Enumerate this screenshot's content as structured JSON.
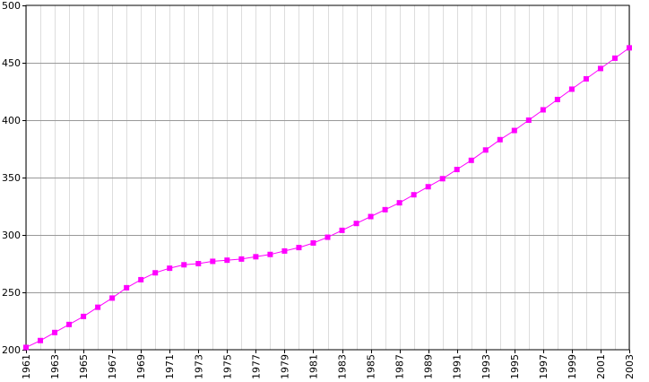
{
  "chart_data": {
    "type": "line",
    "title": "",
    "xlabel": "",
    "ylabel": "",
    "xlim": [
      1961,
      2003
    ],
    "ylim": [
      200,
      500
    ],
    "y_ticks": [
      200,
      250,
      300,
      350,
      400,
      450,
      500
    ],
    "x_tick_labels": [
      "1961",
      "1963",
      "1965",
      "1967",
      "1969",
      "1971",
      "1973",
      "1975",
      "1977",
      "1979",
      "1981",
      "1983",
      "1985",
      "1987",
      "1989",
      "1991",
      "1993",
      "1995",
      "1997",
      "1999",
      "2001",
      "2003"
    ],
    "grid": true,
    "legend": "none",
    "series": [
      {
        "color": "#ff00ff",
        "marker": "square",
        "x": [
          1961,
          1962,
          1963,
          1964,
          1965,
          1966,
          1967,
          1968,
          1969,
          1970,
          1971,
          1972,
          1973,
          1974,
          1975,
          1976,
          1977,
          1978,
          1979,
          1980,
          1981,
          1982,
          1983,
          1984,
          1985,
          1986,
          1987,
          1988,
          1989,
          1990,
          1991,
          1992,
          1993,
          1994,
          1995,
          1996,
          1997,
          1998,
          1999,
          2000,
          2001,
          2002,
          2003
        ],
        "y": [
          202,
          208,
          215,
          222,
          229,
          237,
          245,
          254,
          261,
          267,
          271,
          274,
          275,
          277,
          278,
          279,
          281,
          283,
          286,
          289,
          293,
          298,
          304,
          310,
          316,
          322,
          328,
          335,
          342,
          349,
          357,
          365,
          374,
          383,
          391,
          400,
          409,
          418,
          427,
          436,
          445,
          454,
          463
        ]
      }
    ],
    "colors": {
      "minor_grid": "#dddddd",
      "major_grid": "#999999",
      "axis": "#000000",
      "series": "#ff00ff"
    }
  }
}
